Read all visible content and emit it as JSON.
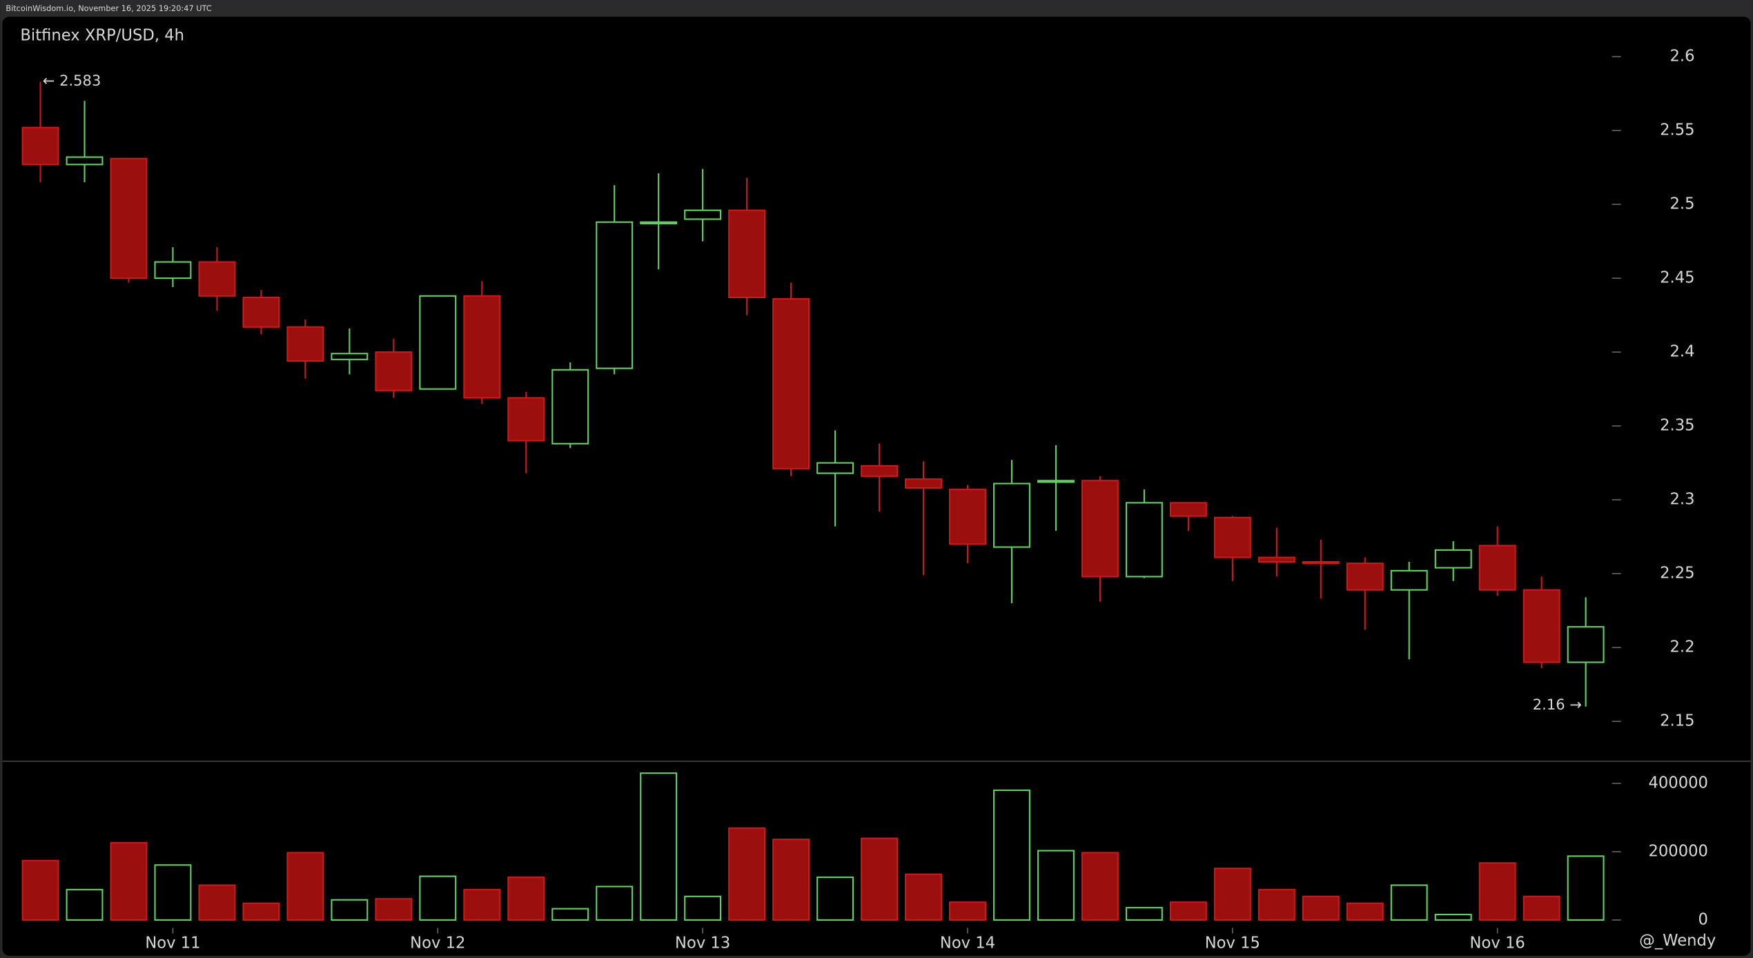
{
  "header": "BitcoinWisdom.io, November 16, 2025 19:20:47 UTC",
  "watermark": "@_Wendy",
  "chart_data": {
    "type": "candlestick",
    "title": "Bitfinex XRP/USD, 4h",
    "categories": [
      null,
      null,
      null,
      "Nov 11",
      null,
      null,
      null,
      null,
      null,
      "Nov 12",
      null,
      null,
      null,
      null,
      null,
      "Nov 13",
      null,
      null,
      null,
      null,
      null,
      "Nov 14",
      null,
      null,
      null,
      null,
      null,
      "Nov 15",
      null,
      null,
      null,
      null,
      null,
      "Nov 16",
      null,
      null
    ],
    "open": [
      2.552,
      2.527,
      2.531,
      2.45,
      2.461,
      2.437,
      2.417,
      2.395,
      2.4,
      2.375,
      2.438,
      2.369,
      2.338,
      2.389,
      2.487,
      2.49,
      2.496,
      2.436,
      2.318,
      2.323,
      2.314,
      2.307,
      2.268,
      2.312,
      2.313,
      2.248,
      2.298,
      2.288,
      2.261,
      2.258,
      2.257,
      2.239,
      2.254,
      2.269,
      2.239,
      2.19
    ],
    "high": [
      2.583,
      2.57,
      2.531,
      2.471,
      2.471,
      2.442,
      2.422,
      2.416,
      2.409,
      2.438,
      2.448,
      2.373,
      2.393,
      2.513,
      2.521,
      2.524,
      2.518,
      2.447,
      2.347,
      2.338,
      2.326,
      2.31,
      2.327,
      2.337,
      2.316,
      2.307,
      2.298,
      2.289,
      2.281,
      2.273,
      2.261,
      2.258,
      2.272,
      2.282,
      2.248,
      2.234
    ],
    "low": [
      2.515,
      2.515,
      2.447,
      2.444,
      2.428,
      2.412,
      2.382,
      2.385,
      2.369,
      2.375,
      2.365,
      2.318,
      2.335,
      2.385,
      2.456,
      2.475,
      2.425,
      2.316,
      2.282,
      2.292,
      2.249,
      2.257,
      2.23,
      2.279,
      2.231,
      2.247,
      2.279,
      2.245,
      2.248,
      2.233,
      2.212,
      2.192,
      2.245,
      2.235,
      2.186,
      2.16
    ],
    "close": [
      2.527,
      2.532,
      2.45,
      2.461,
      2.438,
      2.417,
      2.394,
      2.399,
      2.374,
      2.438,
      2.369,
      2.34,
      2.388,
      2.488,
      2.488,
      2.496,
      2.437,
      2.321,
      2.325,
      2.316,
      2.308,
      2.27,
      2.311,
      2.313,
      2.248,
      2.298,
      2.289,
      2.261,
      2.258,
      2.257,
      2.239,
      2.252,
      2.266,
      2.239,
      2.19,
      2.214
    ],
    "volume": [
      174000,
      89000,
      226000,
      161000,
      102000,
      49000,
      197000,
      59000,
      62000,
      128000,
      89000,
      125000,
      33000,
      98000,
      430000,
      69000,
      269000,
      236000,
      125000,
      239000,
      134000,
      52000,
      380000,
      203000,
      197000,
      36000,
      52000,
      151000,
      89000,
      69000,
      49000,
      102000,
      16000,
      167000,
      69000,
      187000
    ],
    "ylim": [
      2.123,
      2.627
    ],
    "yticks": [
      2.15,
      2.2,
      2.25,
      2.3,
      2.35,
      2.4,
      2.45,
      2.5,
      2.55,
      2.6
    ],
    "volume_ylim": [
      0,
      455000
    ],
    "volume_yticks": [
      0,
      200000,
      400000
    ],
    "up_color": "#5fd35f",
    "down_color": "#9b0f0f",
    "annotations": [
      {
        "text": "← 2.583"
      },
      {
        "text": "2.16 →"
      }
    ]
  }
}
